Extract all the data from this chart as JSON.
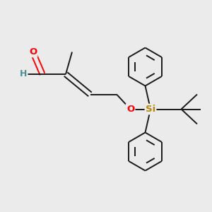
{
  "bg_color": "#ebebeb",
  "bond_color": "#1a1a1a",
  "O_color": "#ff0000",
  "H_color": "#4a9090",
  "Si_color": "#b8860b",
  "line_width": 1.4,
  "figsize": [
    3.0,
    3.0
  ],
  "dpi": 100,
  "xlim": [
    0,
    10
  ],
  "ylim": [
    0,
    10
  ]
}
